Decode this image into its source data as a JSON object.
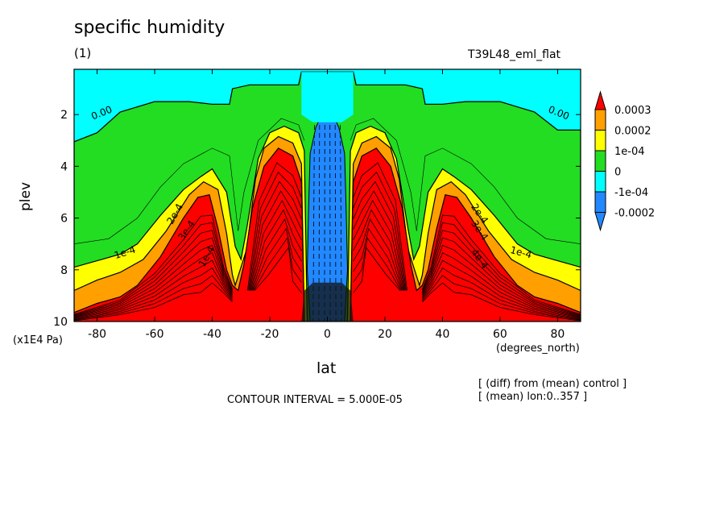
{
  "title": "specific humidity",
  "subtitle": "(1)",
  "model": "T39L48_eml_flat",
  "contour_interval": "CONTOUR INTERVAL = 5.000E-05",
  "notes": [
    "[ (diff) from (mean) control ]",
    "[ (mean) lon:0..357 ]"
  ],
  "chart_data": {
    "type": "contour",
    "title": "specific humidity",
    "xlabel": "lat",
    "x_units": "(degrees_north)",
    "ylabel": "plev",
    "y_units": "(x1E4 Pa)",
    "xlim": [
      -88,
      88
    ],
    "ylim": [
      0.25,
      10
    ],
    "y_inverted": true,
    "x_ticks": [
      -80,
      -60,
      -40,
      -20,
      0,
      20,
      40,
      60,
      80
    ],
    "y_ticks": [
      2,
      4,
      6,
      8,
      10
    ],
    "contour_interval": 5e-05,
    "contour_labels": [
      "0.00",
      "0.00",
      "1e-4",
      "1e-4",
      "2e-4",
      "3e-4",
      "2e-4",
      "3e-4",
      "4e-4",
      "1e-4"
    ],
    "colorbar": [
      {
        "label": "0.0003",
        "color": "#ff0000"
      },
      {
        "label": "0.0002",
        "color": "#ff9f00"
      },
      {
        "label": "1e-04",
        "color": "#ffff00"
      },
      {
        "label": "0",
        "color": "#22dd22"
      },
      {
        "label": "-1e-04",
        "color": "#00ffff"
      },
      {
        "label": "-0.0002",
        "color": "#2288ff"
      }
    ],
    "colors": {
      "cyan": "#00ffff",
      "green": "#22dd22",
      "yellow": "#ffff00",
      "orange": "#ff9f00",
      "red": "#ff0000",
      "blue": "#2288ff"
    }
  }
}
